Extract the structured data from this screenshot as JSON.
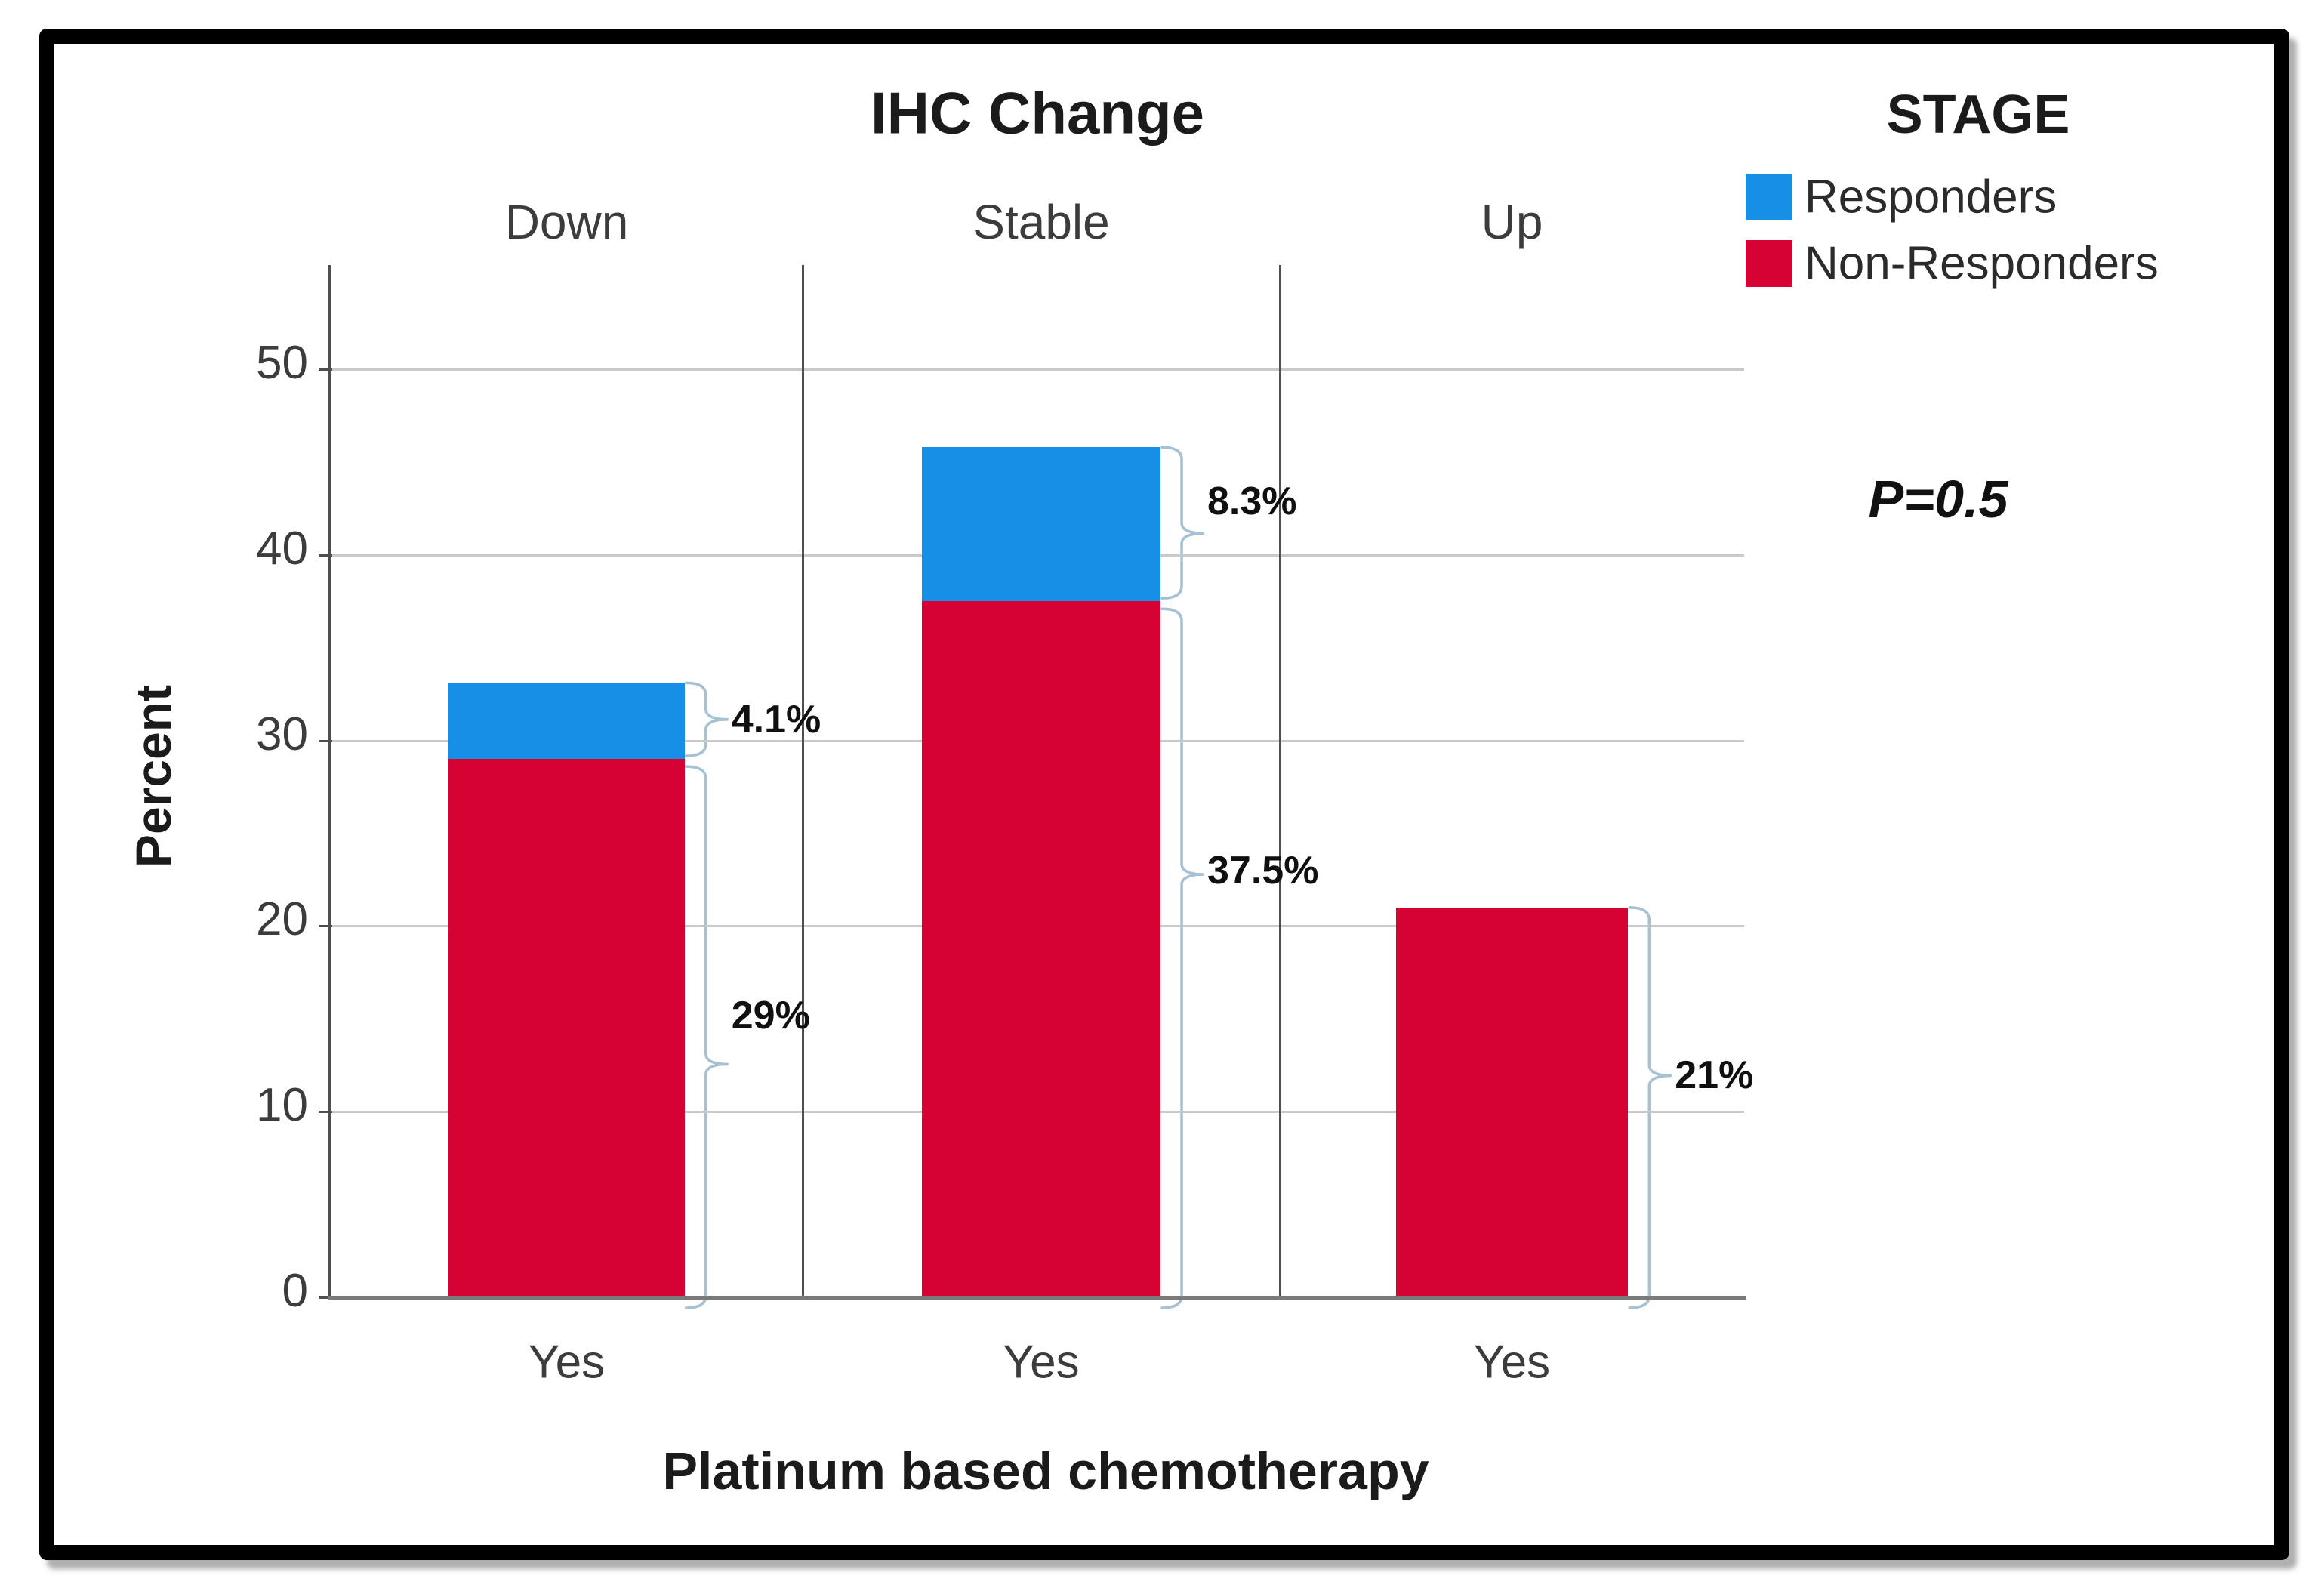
{
  "chart_data": {
    "type": "bar",
    "stacked": true,
    "title": "IHC Change",
    "panels": [
      "Down",
      "Stable",
      "Up"
    ],
    "x_tick_labels": [
      "Yes",
      "Yes",
      "Yes"
    ],
    "xlabel": "Platinum based chemotherapy",
    "ylabel": "Percent",
    "yticks": [
      0,
      10,
      20,
      30,
      40,
      50
    ],
    "ylim": [
      0,
      55.6
    ],
    "grid": "horizontal",
    "legend": {
      "title": "STAGE",
      "position": "top-right"
    },
    "series": [
      {
        "name": "Responders",
        "color": "#1590E6",
        "values": [
          4.1,
          8.3,
          0
        ]
      },
      {
        "name": "Non-Responders",
        "color": "#D60233",
        "values": [
          29,
          37.5,
          21
        ]
      }
    ],
    "annotations": [
      {
        "panel": "Down",
        "series": "Responders",
        "label": "4.1%"
      },
      {
        "panel": "Down",
        "series": "Non-Responders",
        "label": "29%"
      },
      {
        "panel": "Stable",
        "series": "Responders",
        "label": "8.3%"
      },
      {
        "panel": "Stable",
        "series": "Non-Responders",
        "label": "37.5%"
      },
      {
        "panel": "Up",
        "series": "Non-Responders",
        "label": "21%"
      }
    ],
    "stat_label": "P=0.5"
  },
  "colors": {
    "brace": "#A6C0D4",
    "grid": "#C9C9C9",
    "axis": "#4F4F4F",
    "baseline": "#7A7A7A",
    "frame": "#000000",
    "tick_text": "#3C3C3C"
  }
}
